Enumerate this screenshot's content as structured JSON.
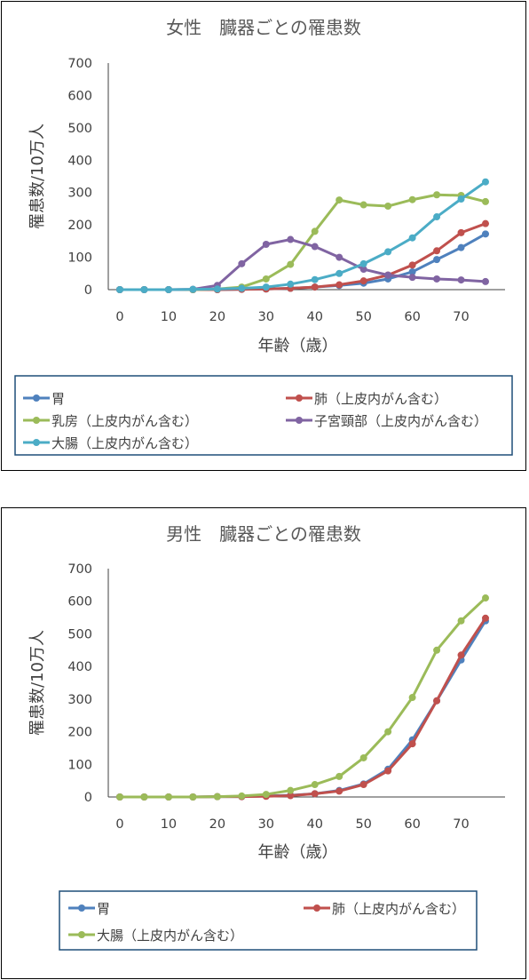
{
  "chart_data": [
    {
      "type": "line",
      "title": "女性　臓器ごとの罹患数",
      "xlabel": "年齢（歳）",
      "ylabel": "罹患数/10万人",
      "xlim": [
        0,
        75
      ],
      "ylim": [
        0,
        700
      ],
      "xticks": [
        0,
        10,
        20,
        30,
        40,
        50,
        60,
        70
      ],
      "yticks": [
        0,
        100,
        200,
        300,
        400,
        500,
        600,
        700
      ],
      "grid": false,
      "legend": "bottom",
      "x": [
        0,
        5,
        10,
        15,
        20,
        25,
        30,
        35,
        40,
        45,
        50,
        55,
        60,
        65,
        70,
        75
      ],
      "series": [
        {
          "name": "胃",
          "color": "#4f81bd",
          "values": [
            0,
            0,
            0,
            0,
            0,
            1,
            2,
            4,
            8,
            13,
            20,
            33,
            55,
            93,
            130,
            172
          ]
        },
        {
          "name": "肺（上皮内がん含む）",
          "color": "#c0504d",
          "values": [
            0,
            0,
            0,
            0,
            0,
            1,
            2,
            4,
            8,
            15,
            27,
            45,
            76,
            120,
            176,
            204
          ]
        },
        {
          "name": "乳房（上皮内がん含む）",
          "color": "#9bbb59",
          "values": [
            0,
            0,
            0,
            0,
            2,
            8,
            33,
            78,
            180,
            277,
            262,
            258,
            278,
            293,
            291,
            272
          ]
        },
        {
          "name": "子宮頸部（上皮内がん含む）",
          "color": "#8064a2",
          "values": [
            0,
            0,
            0,
            1,
            13,
            80,
            140,
            155,
            133,
            100,
            63,
            45,
            38,
            33,
            30,
            25
          ]
        },
        {
          "name": "大腸（上皮内がん含む）",
          "color": "#4bacc6",
          "values": [
            0,
            0,
            0,
            1,
            2,
            4,
            8,
            17,
            31,
            50,
            80,
            117,
            160,
            225,
            280,
            333
          ]
        }
      ]
    },
    {
      "type": "line",
      "title": "男性　臓器ごとの罹患数",
      "xlabel": "年齢（歳）",
      "ylabel": "罹患数/10万人",
      "xlim": [
        0,
        75
      ],
      "ylim": [
        0,
        700
      ],
      "xticks": [
        0,
        10,
        20,
        30,
        40,
        50,
        60,
        70
      ],
      "yticks": [
        0,
        100,
        200,
        300,
        400,
        500,
        600,
        700
      ],
      "grid": false,
      "legend": "bottom",
      "x": [
        0,
        5,
        10,
        15,
        20,
        25,
        30,
        35,
        40,
        45,
        50,
        55,
        60,
        65,
        70,
        75
      ],
      "series": [
        {
          "name": "胃",
          "color": "#4f81bd",
          "values": [
            0,
            0,
            0,
            0,
            1,
            1,
            3,
            5,
            10,
            20,
            40,
            85,
            175,
            295,
            420,
            540
          ]
        },
        {
          "name": "肺（上皮内がん含む）",
          "color": "#c0504d",
          "values": [
            0,
            0,
            0,
            0,
            1,
            1,
            2,
            4,
            10,
            18,
            38,
            80,
            163,
            295,
            435,
            548
          ]
        },
        {
          "name": "大腸（上皮内がん含む）",
          "color": "#9bbb59",
          "values": [
            0,
            0,
            0,
            0,
            1,
            3,
            8,
            20,
            38,
            63,
            120,
            200,
            305,
            450,
            540,
            610
          ]
        }
      ]
    }
  ]
}
